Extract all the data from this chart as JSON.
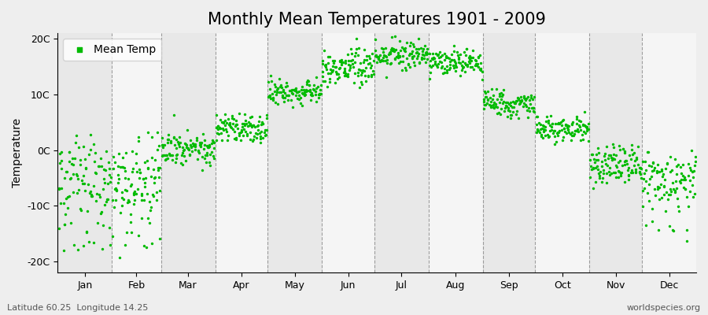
{
  "title": "Monthly Mean Temperatures 1901 - 2009",
  "ylabel": "Temperature",
  "yticks": [
    -20,
    -10,
    0,
    10,
    20
  ],
  "ytick_labels": [
    "-20C",
    "-10C",
    "0C",
    "10C",
    "20C"
  ],
  "ylim": [
    -22,
    21
  ],
  "background_color": "#eeeeee",
  "plot_bg_color": "#f5f5f5",
  "alt_bg_color": "#e8e8e8",
  "dot_color": "#00bb00",
  "dot_size": 6,
  "months": [
    "Jan",
    "Feb",
    "Mar",
    "Apr",
    "May",
    "Jun",
    "Jul",
    "Aug",
    "Sep",
    "Oct",
    "Nov",
    "Dec"
  ],
  "month_days": [
    31,
    28,
    31,
    30,
    31,
    30,
    31,
    31,
    30,
    31,
    30,
    31
  ],
  "total_days": 365,
  "xlim": [
    0,
    365
  ],
  "legend_label": "Mean Temp",
  "footnote_left": "Latitude 60.25  Longitude 14.25",
  "footnote_right": "worldspecies.org",
  "title_fontsize": 15,
  "axis_fontsize": 10,
  "tick_fontsize": 9,
  "footnote_fontsize": 8,
  "n_years": 109,
  "monthly_mean": [
    -5.0,
    -5.5,
    0.5,
    4.0,
    10.5,
    15.0,
    17.0,
    15.8,
    8.5,
    3.8,
    -2.5,
    -5.0
  ],
  "monthly_std": [
    3.5,
    3.8,
    1.5,
    1.5,
    1.2,
    1.5,
    1.5,
    1.3,
    1.2,
    1.2,
    1.8,
    2.5
  ],
  "monthly_extra_low_prob": [
    0.12,
    0.1,
    0.0,
    0.0,
    0.0,
    0.0,
    0.0,
    0.0,
    0.0,
    0.0,
    0.0,
    0.1
  ],
  "monthly_extra_low_mean": [
    -16.0,
    -16.5,
    0.0,
    0.0,
    0.0,
    0.0,
    0.0,
    0.0,
    0.0,
    0.0,
    0.0,
    -14.0
  ],
  "monthly_extra_low_std": [
    2.0,
    2.0,
    0.0,
    0.0,
    0.0,
    0.0,
    0.0,
    0.0,
    0.0,
    0.0,
    0.0,
    0.8
  ]
}
